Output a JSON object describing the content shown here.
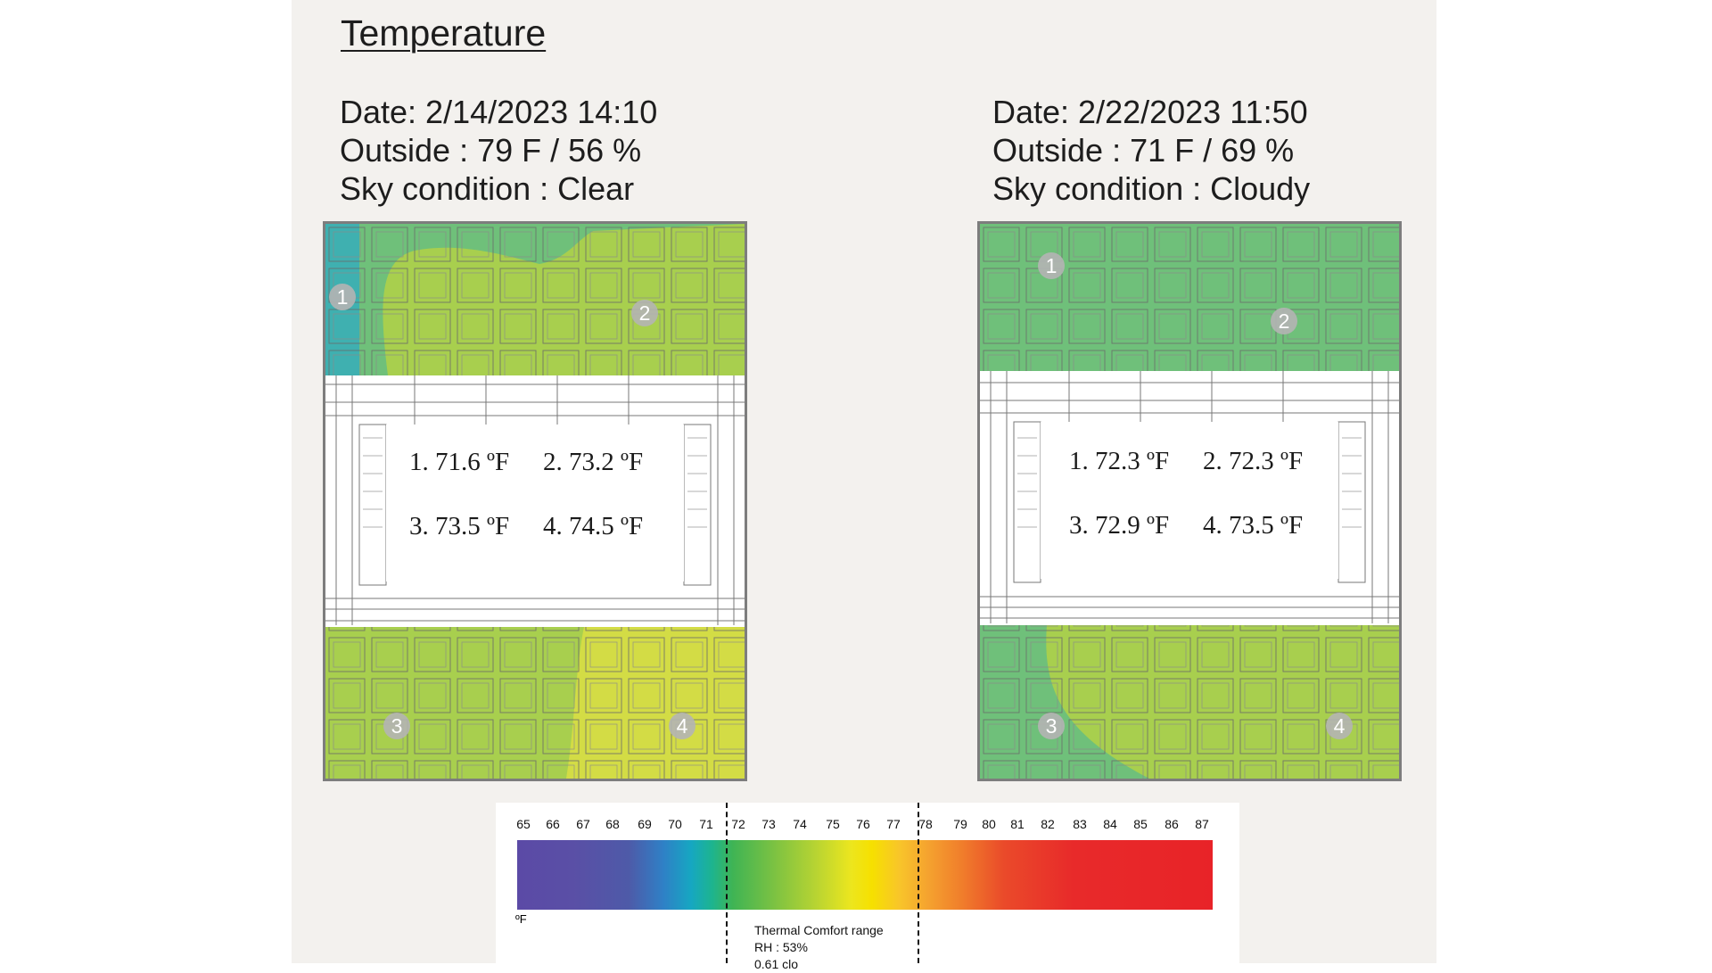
{
  "title": "Temperature",
  "left": {
    "date": "Date: 2/14/2023 14:10",
    "outside": "Outside : 79 F / 56 %",
    "sky": "Sky condition : Clear",
    "readings": [
      "1. 71.6 ºF",
      "2. 73.2 ºF",
      "3. 73.5 ºF",
      "4. 74.5 ºF"
    ],
    "markers": [
      "1",
      "2",
      "3",
      "4"
    ]
  },
  "right": {
    "date": "Date: 2/22/2023 11:50",
    "outside": "Outside : 71 F / 69 %",
    "sky": "Sky condition : Cloudy",
    "readings": [
      "1. 72.3 ºF",
      "2. 72.3 ºF",
      "3. 72.9 ºF",
      "4. 73.5 ºF"
    ],
    "markers": [
      "1",
      "2",
      "3",
      "4"
    ]
  },
  "legend": {
    "ticks": [
      "65",
      "66",
      "67",
      "68",
      "69",
      "70",
      "71",
      "72",
      "73",
      "74",
      "75",
      "76",
      "77",
      "78",
      "79",
      "80",
      "81",
      "82",
      "83",
      "84",
      "85",
      "86",
      "87"
    ],
    "unit": "ºF",
    "comfort_title": "Thermal Comfort range",
    "comfort_rh": "RH : 53%",
    "comfort_clo": "0.61 clo"
  },
  "colors": {
    "cool": "#3fb0a6",
    "green": "#6fc07a",
    "yellowgreen": "#a8cf4e",
    "yellow": "#d6dc3e"
  }
}
